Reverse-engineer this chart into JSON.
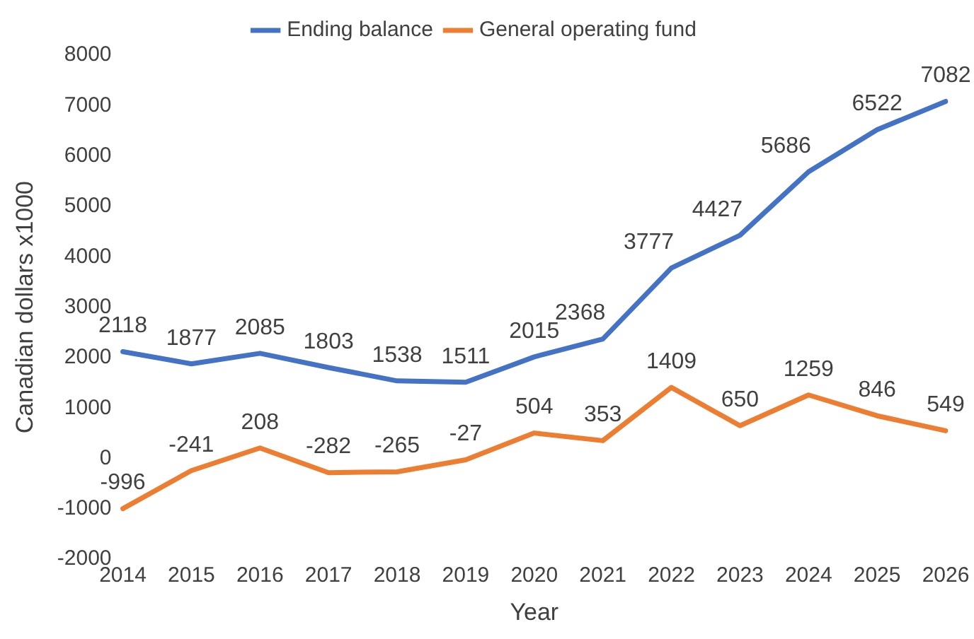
{
  "chart_data": {
    "type": "line",
    "xlabel": "Year",
    "ylabel": "Canadian dollars x1000",
    "categories": [
      "2014",
      "2015",
      "2016",
      "2017",
      "2018",
      "2019",
      "2020",
      "2021",
      "2022",
      "2023",
      "2024",
      "2025",
      "2026"
    ],
    "series": [
      {
        "name": "Ending balance",
        "color": "#4472c4",
        "values": [
          2118,
          1877,
          2085,
          1803,
          1538,
          1511,
          2015,
          2368,
          3777,
          4427,
          5686,
          6522,
          7082
        ]
      },
      {
        "name": "General operating fund",
        "color": "#ed7d31",
        "values": [
          -996,
          -241,
          208,
          -282,
          -265,
          -27,
          504,
          353,
          1409,
          650,
          1259,
          846,
          549
        ]
      }
    ],
    "ylim": [
      -2000,
      8000
    ],
    "yticks": [
      -2000,
      -1000,
      0,
      1000,
      2000,
      3000,
      4000,
      5000,
      6000,
      7000,
      8000
    ],
    "grid": false,
    "legend": "top",
    "marker": "none",
    "line_style": "solid",
    "data_labels": true
  }
}
